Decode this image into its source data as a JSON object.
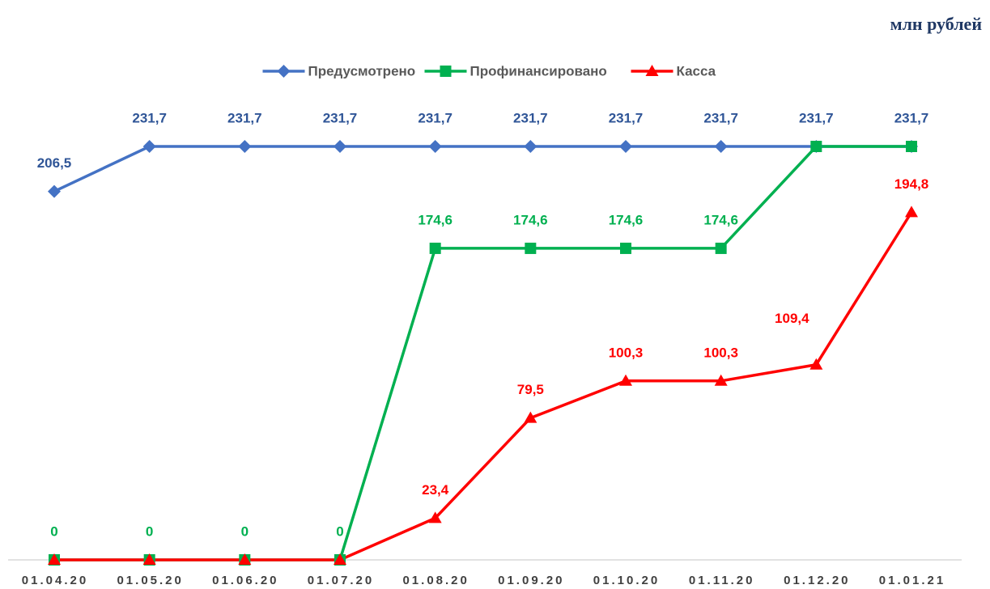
{
  "chart_data": {
    "type": "line",
    "subtitle": "млн рублей",
    "categories": [
      "01.04.20",
      "01.05.20",
      "01.06.20",
      "01.07.20",
      "01.08.20",
      "01.09.20",
      "01.10.20",
      "01.11.20",
      "01.12.20",
      "01.01.21"
    ],
    "series": [
      {
        "name": "Предусмотрено",
        "color": "#4472c4",
        "marker": "diamond",
        "values": [
          206.5,
          231.7,
          231.7,
          231.7,
          231.7,
          231.7,
          231.7,
          231.7,
          231.7,
          231.7
        ],
        "value_labels": [
          "206,5",
          "231,7",
          "231,7",
          "231,7",
          "231,7",
          "231,7",
          "231,7",
          "231,7",
          "231,7",
          "231,7"
        ]
      },
      {
        "name": "Профинансировано",
        "color": "#00b050",
        "marker": "square",
        "values": [
          0,
          0,
          0,
          0,
          174.6,
          174.6,
          174.6,
          174.6,
          231.7,
          231.7
        ],
        "value_labels": [
          "0",
          "0",
          "0",
          "0",
          "174,6",
          "174,6",
          "174,6",
          "174,6",
          null,
          null
        ]
      },
      {
        "name": "Касса",
        "color": "#ff0000",
        "marker": "triangle",
        "values": [
          0,
          0,
          0,
          0,
          23.4,
          79.5,
          100.3,
          100.3,
          109.4,
          194.8
        ],
        "value_labels": [
          null,
          null,
          null,
          null,
          "23,4",
          "79,5",
          "100,3",
          "100,3",
          "109,4",
          "194,8"
        ]
      }
    ],
    "legend": "top",
    "grid": false
  }
}
